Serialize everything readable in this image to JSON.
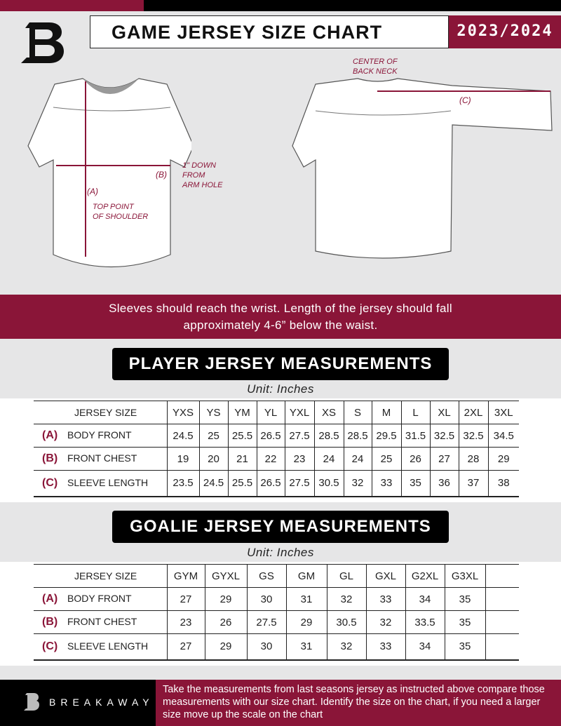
{
  "header": {
    "title": "GAME JERSEY SIZE CHART",
    "season": "2023/2024",
    "logo": "breakaway-b-logo"
  },
  "diagram": {
    "front_notes": {
      "a": "(A)",
      "a_desc": "TOP POINT\nOF SHOULDER",
      "b": "(B)",
      "b_desc": "1\" DOWN\nFROM\nARM HOLE"
    },
    "back_notes": {
      "c": "(C)",
      "c_desc": "CENTER OF\nBACK NECK"
    }
  },
  "banner": {
    "line1": "Sleeves should reach the wrist. Length of the jersey should fall",
    "line2": "approximately 4-6” below the waist."
  },
  "player": {
    "title": "PLAYER JERSEY MEASUREMENTS",
    "unit": "Unit: Inches",
    "size_label": "JERSEY SIZE",
    "sizes": [
      "YXS",
      "YS",
      "YM",
      "YL",
      "YXL",
      "XS",
      "S",
      "M",
      "L",
      "XL",
      "2XL",
      "3XL"
    ],
    "rows": [
      {
        "letter": "(A)",
        "label": "BODY FRONT",
        "values": [
          "24.5",
          "25",
          "25.5",
          "26.5",
          "27.5",
          "28.5",
          "28.5",
          "29.5",
          "31.5",
          "32.5",
          "32.5",
          "34.5"
        ]
      },
      {
        "letter": "(B)",
        "label": "FRONT CHEST",
        "values": [
          "19",
          "20",
          "21",
          "22",
          "23",
          "24",
          "24",
          "25",
          "26",
          "27",
          "28",
          "29"
        ]
      },
      {
        "letter": "(C)",
        "label": "SLEEVE LENGTH",
        "values": [
          "23.5",
          "24.5",
          "25.5",
          "26.5",
          "27.5",
          "30.5",
          "32",
          "33",
          "35",
          "36",
          "37",
          "38"
        ]
      }
    ]
  },
  "goalie": {
    "title": "GOALIE JERSEY MEASUREMENTS",
    "unit": "Unit: Inches",
    "size_label": "JERSEY SIZE",
    "sizes": [
      "GYM",
      "GYXL",
      "GS",
      "GM",
      "GL",
      "GXL",
      "G2XL",
      "G3XL",
      ""
    ],
    "rows": [
      {
        "letter": "(A)",
        "label": "BODY FRONT",
        "values": [
          "27",
          "29",
          "30",
          "31",
          "32",
          "33",
          "34",
          "35",
          ""
        ]
      },
      {
        "letter": "(B)",
        "label": "FRONT CHEST",
        "values": [
          "23",
          "26",
          "27.5",
          "29",
          "30.5",
          "32",
          "33.5",
          "35",
          ""
        ]
      },
      {
        "letter": "(C)",
        "label": "SLEEVE LENGTH",
        "values": [
          "27",
          "29",
          "30",
          "31",
          "32",
          "33",
          "34",
          "35",
          ""
        ]
      }
    ]
  },
  "footer": {
    "brand": "BREAKAWAY",
    "text": "Take the measurements from last seasons jersey as instructed above compare those measurements  with our size chart. Identify the size on the chart, if you need a larger size move up the scale on the chart"
  },
  "colors": {
    "accent": "#8a1538",
    "dark": "#000000",
    "background": "#e6e6e7"
  }
}
